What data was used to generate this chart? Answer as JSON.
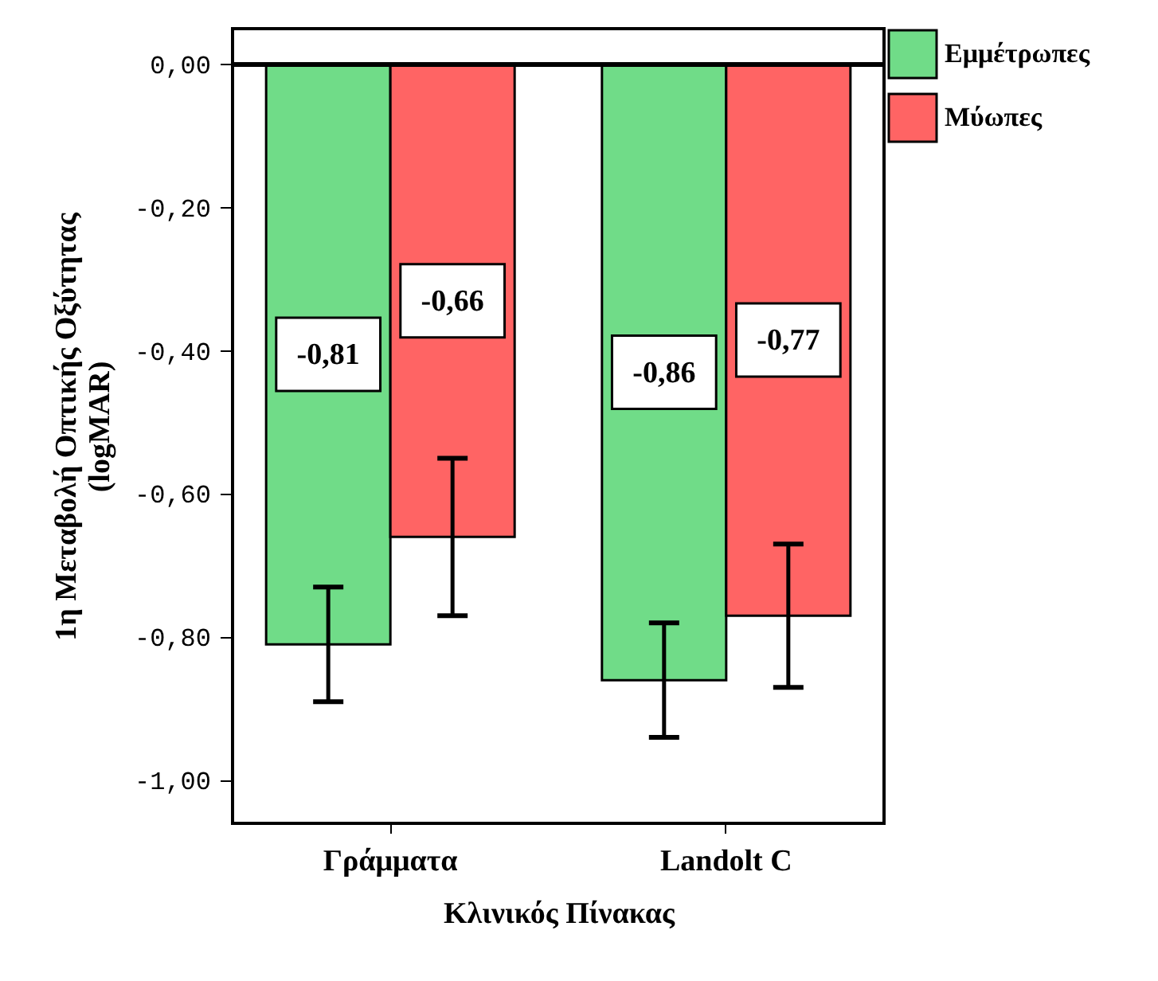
{
  "chart_data": {
    "type": "bar",
    "xlabel": "Κλινικός Πίνακας",
    "ylabel": "1η Μεταβολή Οπτικής Οξύτητας\n(logMAR)",
    "categories": [
      "Γράμματα",
      "Landolt C"
    ],
    "series": [
      {
        "name": "Εμμέτρωπες",
        "color": "#70dc88",
        "values": [
          -0.81,
          -0.86
        ],
        "value_labels": [
          "-0,81",
          "-0,86"
        ],
        "errors": [
          0.08,
          0.08
        ]
      },
      {
        "name": "Μύωπες",
        "color": "#ff6464",
        "values": [
          -0.66,
          -0.77
        ],
        "value_labels": [
          "-0,66",
          "-0,77"
        ],
        "errors": [
          0.11,
          0.1
        ]
      }
    ],
    "ylim": [
      -1.06,
      0.05
    ],
    "yticks": [
      {
        "value": 0,
        "label": "0,00"
      },
      {
        "value": -0.2,
        "label": "-0,20"
      },
      {
        "value": -0.4,
        "label": "-0,40"
      },
      {
        "value": -0.6,
        "label": "-0,60"
      },
      {
        "value": -0.8,
        "label": "-0,80"
      },
      {
        "value": -1,
        "label": "-1,00"
      }
    ],
    "ref_lines": [
      {
        "axis": "y",
        "value": 0,
        "color": "#000000"
      }
    ],
    "grid": false,
    "legend": "top right"
  }
}
